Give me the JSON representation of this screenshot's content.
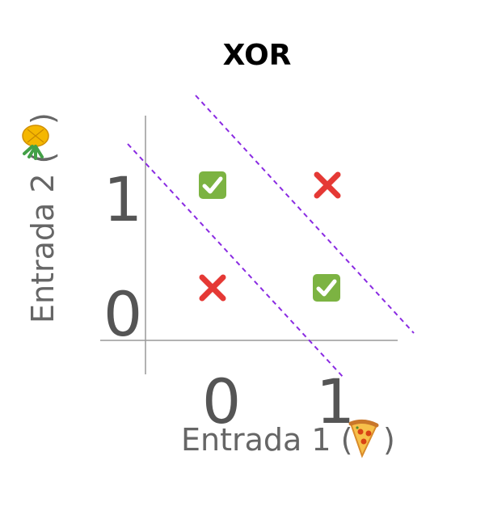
{
  "title": "XOR",
  "x_axis": {
    "label_prefix": "Entrada 1 (",
    "label_suffix": ")",
    "icon": "pizza-icon",
    "ticks": [
      "0",
      "1"
    ]
  },
  "y_axis": {
    "label_prefix": "Entrada 2 (",
    "label_suffix": ")",
    "icon": "pineapple-icon",
    "ticks": [
      "0",
      "1"
    ]
  },
  "colors": {
    "check": "#7cb342",
    "cross": "#e53935",
    "boundary": "#8a2be2",
    "axis": "#999999",
    "tick_text": "#555555",
    "title": "#000000"
  },
  "chart_data": {
    "type": "scatter",
    "title": "XOR",
    "xlabel": "Entrada 1 (🍕)",
    "ylabel": "Entrada 2 (🍍)",
    "xlim": [
      0,
      1
    ],
    "ylim": [
      0,
      1
    ],
    "grid": false,
    "points": [
      {
        "x": 0,
        "y": 0,
        "marker": "cross",
        "icon": "cross-icon"
      },
      {
        "x": 0,
        "y": 1,
        "marker": "check",
        "icon": "check-icon"
      },
      {
        "x": 1,
        "y": 0,
        "marker": "check",
        "icon": "check-icon"
      },
      {
        "x": 1,
        "y": 1,
        "marker": "cross",
        "icon": "cross-icon"
      }
    ],
    "decision_boundaries": [
      {
        "style": "dashed",
        "orientation": "diagonal",
        "separates": "lower-left"
      },
      {
        "style": "dashed",
        "orientation": "diagonal",
        "separates": "upper-right"
      }
    ]
  }
}
